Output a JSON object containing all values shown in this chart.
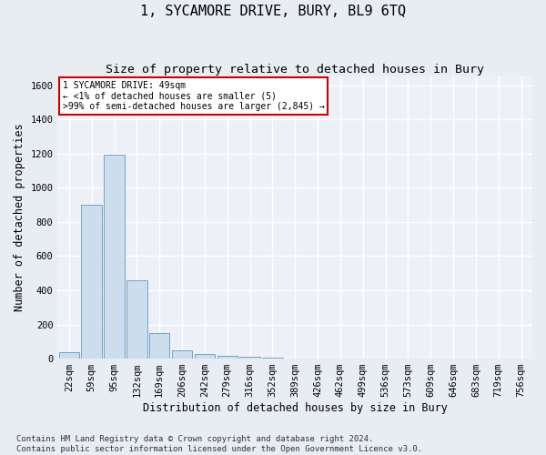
{
  "title": "1, SYCAMORE DRIVE, BURY, BL9 6TQ",
  "subtitle": "Size of property relative to detached houses in Bury",
  "xlabel": "Distribution of detached houses by size in Bury",
  "ylabel": "Number of detached properties",
  "footnote": "Contains HM Land Registry data © Crown copyright and database right 2024.\nContains public sector information licensed under the Open Government Licence v3.0.",
  "bin_labels": [
    "22sqm",
    "59sqm",
    "95sqm",
    "132sqm",
    "169sqm",
    "206sqm",
    "242sqm",
    "279sqm",
    "316sqm",
    "352sqm",
    "389sqm",
    "426sqm",
    "462sqm",
    "499sqm",
    "536sqm",
    "573sqm",
    "609sqm",
    "646sqm",
    "683sqm",
    "719sqm",
    "756sqm"
  ],
  "bar_values": [
    40,
    900,
    1195,
    460,
    150,
    50,
    25,
    15,
    10,
    5,
    2,
    0,
    0,
    0,
    0,
    0,
    0,
    0,
    0,
    0,
    0
  ],
  "bar_color": "#ccdded",
  "bar_edge_color": "#6699bb",
  "annotation_text": "1 SYCAMORE DRIVE: 49sqm\n← <1% of detached houses are smaller (5)\n>99% of semi-detached houses are larger (2,845) →",
  "annotation_box_color": "#ffffff",
  "annotation_box_edge_color": "#cc0000",
  "ylim": [
    0,
    1650
  ],
  "yticks": [
    0,
    200,
    400,
    600,
    800,
    1000,
    1200,
    1400,
    1600
  ],
  "background_color": "#e8edf3",
  "plot_background_color": "#edf1f7",
  "grid_color": "#ffffff",
  "title_fontsize": 11,
  "subtitle_fontsize": 9.5,
  "axis_label_fontsize": 8.5,
  "tick_fontsize": 7.5,
  "footnote_fontsize": 6.5,
  "annotation_fontsize": 7.0
}
